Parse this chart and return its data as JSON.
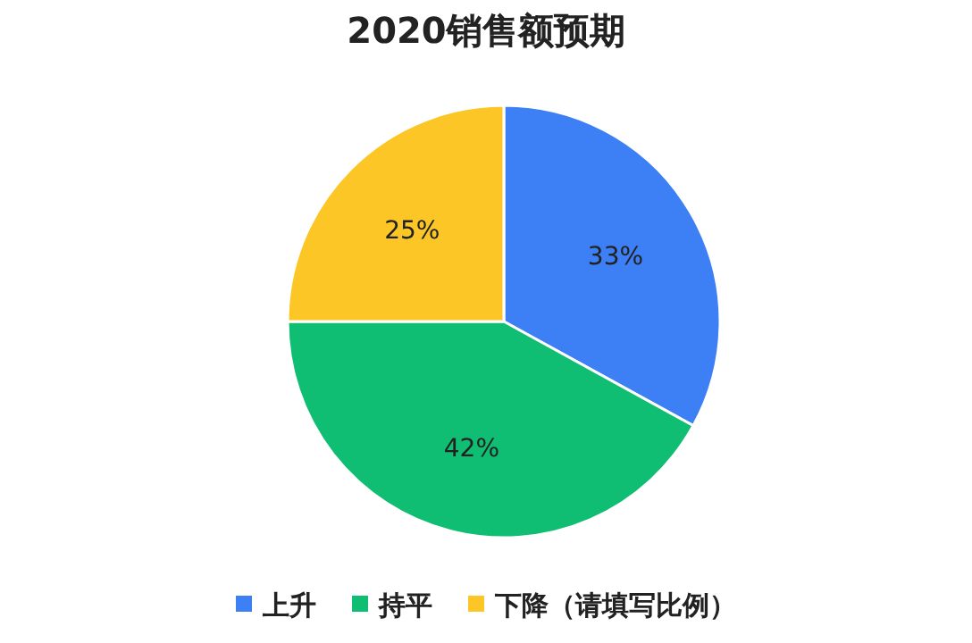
{
  "chart_data": {
    "type": "pie",
    "title": "2020销售额预期",
    "categories": [
      "上升",
      "持平",
      "下降（请填写比例）"
    ],
    "values": [
      33,
      42,
      25
    ],
    "colors": [
      "#3d7ff5",
      "#0fbe72",
      "#fcc626"
    ],
    "value_labels": [
      "33%",
      "42%",
      "25%"
    ],
    "legend": "bottom"
  }
}
